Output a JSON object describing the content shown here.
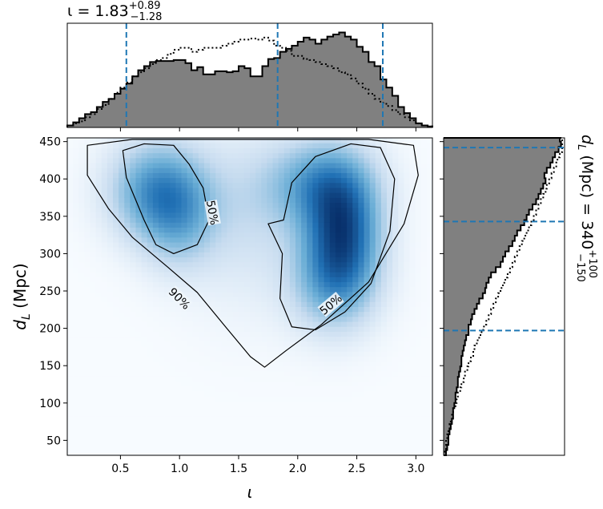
{
  "chart_data": [
    {
      "type": "heatmap",
      "panel": "joint",
      "xlabel": "ι",
      "ylabel_base": "d",
      "ylabel_sub": "L",
      "ylabel_unit": " (Mpc)",
      "xlim": [
        0.05,
        3.14
      ],
      "ylim": [
        30,
        455
      ],
      "xticks": [
        0.5,
        1.0,
        1.5,
        2.0,
        2.5,
        3.0
      ],
      "xtick_labels": [
        "0.5",
        "1.0",
        "1.5",
        "2.0",
        "2.5",
        "3.0"
      ],
      "yticks": [
        50,
        100,
        150,
        200,
        250,
        300,
        350,
        400,
        450
      ],
      "ytick_labels": [
        "50",
        "100",
        "150",
        "200",
        "250",
        "300",
        "350",
        "400",
        "450"
      ],
      "colormap": "Blues",
      "density_components": [
        {
          "x": 0.82,
          "y": 385,
          "sx": 0.28,
          "sy": 45,
          "w": 0.75
        },
        {
          "x": 1.0,
          "y": 340,
          "sx": 0.22,
          "sy": 45,
          "w": 0.35
        },
        {
          "x": 2.38,
          "y": 330,
          "sx": 0.22,
          "sy": 55,
          "w": 1.0
        },
        {
          "x": 2.2,
          "y": 395,
          "sx": 0.3,
          "sy": 40,
          "w": 0.6
        },
        {
          "x": 2.3,
          "y": 260,
          "sx": 0.25,
          "sy": 45,
          "w": 0.5
        },
        {
          "x": 1.6,
          "y": 380,
          "sx": 0.35,
          "sy": 60,
          "w": 0.18
        },
        {
          "x": 1.6,
          "y": 300,
          "sx": 0.4,
          "sy": 70,
          "w": 0.1
        }
      ],
      "contours": [
        {
          "label": "90%",
          "label_x": 1.0,
          "label_y": 240,
          "label_angle": 45,
          "points": [
            [
              0.22,
              445
            ],
            [
              0.22,
              405
            ],
            [
              0.4,
              360
            ],
            [
              0.6,
              322
            ],
            [
              0.9,
              282
            ],
            [
              1.15,
              248
            ],
            [
              1.4,
              200
            ],
            [
              1.6,
              162
            ],
            [
              1.72,
              148
            ],
            [
              1.9,
              170
            ],
            [
              2.2,
              205
            ],
            [
              2.6,
              262
            ],
            [
              2.9,
              340
            ],
            [
              3.02,
              405
            ],
            [
              2.98,
              445
            ],
            [
              2.6,
              453
            ],
            [
              1.8,
              453
            ],
            [
              0.6,
              453
            ]
          ]
        },
        {
          "label": "50%",
          "label_x": 1.28,
          "label_y": 355,
          "label_angle": 80,
          "points": [
            [
              0.52,
              438
            ],
            [
              0.7,
              447
            ],
            [
              0.95,
              445
            ],
            [
              1.08,
              420
            ],
            [
              1.2,
              388
            ],
            [
              1.25,
              345
            ],
            [
              1.15,
              312
            ],
            [
              0.95,
              300
            ],
            [
              0.8,
              312
            ],
            [
              0.7,
              345
            ],
            [
              0.55,
              402
            ]
          ]
        },
        {
          "label": "50%",
          "label_x": 2.28,
          "label_y": 232,
          "label_angle": -40,
          "points": [
            [
              1.88,
              345
            ],
            [
              1.95,
              395
            ],
            [
              2.15,
              430
            ],
            [
              2.45,
              447
            ],
            [
              2.7,
              442
            ],
            [
              2.82,
              400
            ],
            [
              2.78,
              330
            ],
            [
              2.62,
              260
            ],
            [
              2.4,
              222
            ],
            [
              2.15,
              198
            ],
            [
              1.95,
              202
            ],
            [
              1.85,
              240
            ],
            [
              1.87,
              300
            ],
            [
              1.75,
              340
            ]
          ]
        }
      ]
    },
    {
      "type": "bar",
      "panel": "top-marginal",
      "title_base": "ι = 1.83",
      "title_sup": "+0.89",
      "title_sub": "−1.28",
      "median": 1.83,
      "interval": [
        0.55,
        2.72
      ],
      "bin_edges": [
        0.05,
        0.1,
        0.15,
        0.2,
        0.25,
        0.3,
        0.35,
        0.4,
        0.45,
        0.5,
        0.55,
        0.6,
        0.65,
        0.7,
        0.75,
        0.8,
        0.85,
        0.9,
        0.95,
        1.0,
        1.05,
        1.1,
        1.15,
        1.2,
        1.25,
        1.3,
        1.35,
        1.4,
        1.45,
        1.5,
        1.55,
        1.6,
        1.65,
        1.7,
        1.75,
        1.8,
        1.85,
        1.9,
        1.95,
        2.0,
        2.05,
        2.1,
        2.15,
        2.2,
        2.25,
        2.3,
        2.35,
        2.4,
        2.45,
        2.5,
        2.55,
        2.6,
        2.65,
        2.7,
        2.75,
        2.8,
        2.85,
        2.9,
        2.95,
        3.0,
        3.05,
        3.1,
        3.14
      ],
      "values": [
        0.02,
        0.05,
        0.09,
        0.13,
        0.15,
        0.2,
        0.25,
        0.28,
        0.33,
        0.38,
        0.43,
        0.5,
        0.56,
        0.6,
        0.64,
        0.65,
        0.65,
        0.65,
        0.66,
        0.66,
        0.63,
        0.56,
        0.59,
        0.52,
        0.52,
        0.55,
        0.55,
        0.54,
        0.55,
        0.6,
        0.58,
        0.5,
        0.5,
        0.6,
        0.67,
        0.68,
        0.74,
        0.77,
        0.8,
        0.84,
        0.88,
        0.86,
        0.82,
        0.86,
        0.89,
        0.91,
        0.93,
        0.89,
        0.86,
        0.79,
        0.74,
        0.64,
        0.6,
        0.47,
        0.39,
        0.31,
        0.2,
        0.14,
        0.09,
        0.04,
        0.02,
        0.01
      ],
      "values_prior": [
        0.02,
        0.04,
        0.06,
        0.1,
        0.13,
        0.18,
        0.22,
        0.28,
        0.34,
        0.39,
        0.44,
        0.5,
        0.54,
        0.58,
        0.62,
        0.66,
        0.68,
        0.72,
        0.76,
        0.78,
        0.78,
        0.74,
        0.76,
        0.78,
        0.78,
        0.78,
        0.8,
        0.82,
        0.84,
        0.86,
        0.86,
        0.87,
        0.86,
        0.88,
        0.85,
        0.8,
        0.78,
        0.75,
        0.7,
        0.7,
        0.67,
        0.66,
        0.64,
        0.62,
        0.6,
        0.58,
        0.54,
        0.52,
        0.48,
        0.43,
        0.38,
        0.33,
        0.28,
        0.24,
        0.21,
        0.17,
        0.13,
        0.1,
        0.07,
        0.04,
        0.02,
        0.01
      ],
      "ylim": [
        0,
        1.02
      ]
    },
    {
      "type": "bar",
      "panel": "right-marginal",
      "label_base": "d",
      "label_sub": "L",
      "label_mid": " (Mpc) = 340",
      "label_sup": "+100",
      "label_subscript": "−150",
      "median": 343,
      "interval": [
        197,
        442
      ],
      "bin_edges": [
        30,
        37,
        44,
        51,
        58,
        65,
        72,
        79,
        86,
        93,
        100,
        107,
        114,
        121,
        128,
        135,
        142,
        149,
        156,
        163,
        170,
        177,
        184,
        191,
        198,
        205,
        212,
        219,
        226,
        233,
        240,
        247,
        254,
        261,
        268,
        275,
        282,
        289,
        296,
        303,
        310,
        317,
        324,
        331,
        338,
        345,
        352,
        359,
        366,
        373,
        380,
        387,
        394,
        401,
        408,
        415,
        422,
        429,
        436,
        443,
        450,
        457
      ],
      "values": [
        0.02,
        0.03,
        0.04,
        0.04,
        0.05,
        0.06,
        0.07,
        0.08,
        0.08,
        0.09,
        0.1,
        0.1,
        0.11,
        0.12,
        0.12,
        0.13,
        0.14,
        0.15,
        0.15,
        0.16,
        0.17,
        0.18,
        0.19,
        0.21,
        0.21,
        0.23,
        0.24,
        0.26,
        0.28,
        0.3,
        0.33,
        0.35,
        0.36,
        0.38,
        0.4,
        0.44,
        0.48,
        0.5,
        0.52,
        0.55,
        0.58,
        0.6,
        0.62,
        0.65,
        0.68,
        0.7,
        0.72,
        0.75,
        0.78,
        0.8,
        0.82,
        0.84,
        0.86,
        0.85,
        0.87,
        0.9,
        0.92,
        0.94,
        0.97,
        0.99,
        0.98
      ],
      "values_prior": [
        0.01,
        0.02,
        0.02,
        0.03,
        0.04,
        0.05,
        0.06,
        0.07,
        0.08,
        0.1,
        0.11,
        0.12,
        0.14,
        0.15,
        0.17,
        0.18,
        0.2,
        0.21,
        0.23,
        0.25,
        0.26,
        0.28,
        0.3,
        0.32,
        0.34,
        0.36,
        0.38,
        0.4,
        0.42,
        0.44,
        0.46,
        0.48,
        0.5,
        0.52,
        0.54,
        0.56,
        0.58,
        0.6,
        0.62,
        0.64,
        0.66,
        0.68,
        0.7,
        0.72,
        0.74,
        0.76,
        0.78,
        0.8,
        0.82,
        0.84,
        0.86,
        0.87,
        0.89,
        0.91,
        0.93,
        0.95,
        0.96,
        0.98,
        1.0,
        1.0,
        1.0
      ],
      "xlim": [
        0,
        1.02
      ]
    }
  ]
}
